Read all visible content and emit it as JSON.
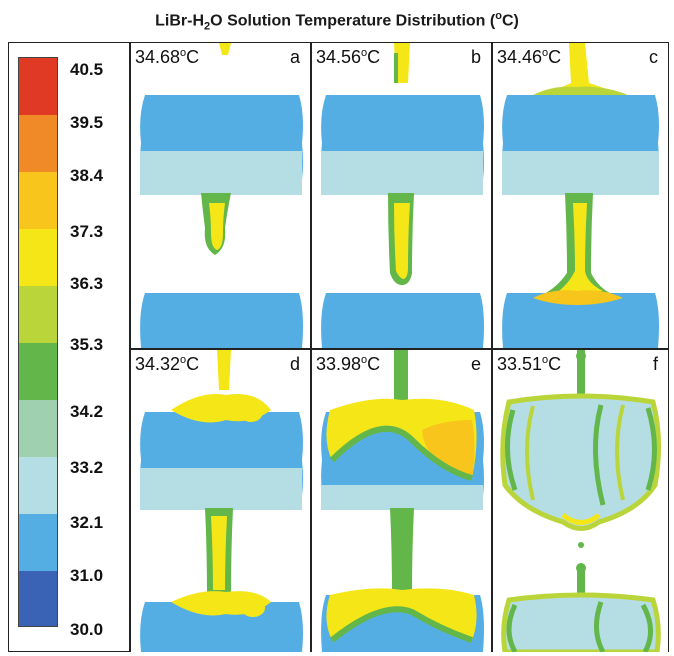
{
  "title": {
    "prefix": "LiBr-H",
    "sub": "2",
    "middle": "O Solution Temperature Distribution (",
    "sup": "o",
    "suffix": "C)"
  },
  "colorbar": {
    "labels": [
      "40.5",
      "39.5",
      "38.4",
      "37.3",
      "36.3",
      "35.3",
      "34.2",
      "33.2",
      "32.1",
      "31.0",
      "30.0"
    ],
    "colors": [
      "#e03a24",
      "#ef8a26",
      "#f7c51c",
      "#f5e617",
      "#b9d53a",
      "#63b74a",
      "#9fd0b0",
      "#b5dde4",
      "#55aee3",
      "#3a62b5"
    ]
  },
  "panels": [
    {
      "letter": "a",
      "temp": "34.68",
      "unit_sup": "o",
      "unit": "C"
    },
    {
      "letter": "b",
      "temp": "34.56",
      "unit_sup": "o",
      "unit": "C"
    },
    {
      "letter": "c",
      "temp": "34.46",
      "unit_sup": "o",
      "unit": "C"
    },
    {
      "letter": "d",
      "temp": "34.32",
      "unit_sup": "o",
      "unit": "C"
    },
    {
      "letter": "e",
      "temp": "33.98",
      "unit_sup": "o",
      "unit": "C"
    },
    {
      "letter": "f",
      "temp": "33.51",
      "unit_sup": "o",
      "unit": "C"
    }
  ]
}
